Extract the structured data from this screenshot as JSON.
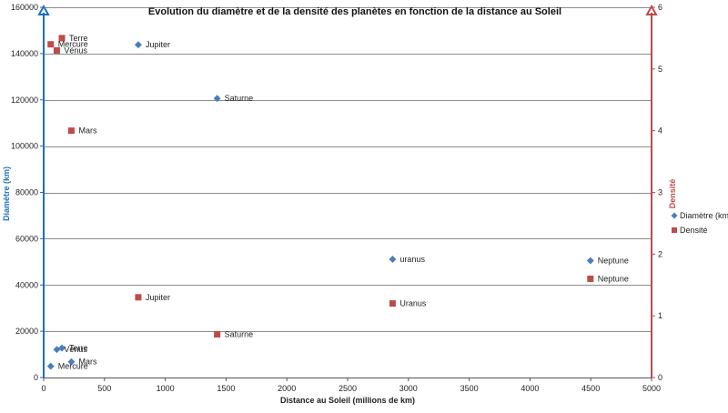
{
  "chart_data": {
    "type": "scatter",
    "title": "Evolution du diamètre et de la densité des planètes en fonction de la distance au Soleil",
    "xlabel": "Distance au Soleil (millions de km)",
    "ylabel": "Diamètre (km)",
    "y2label": "Densité",
    "xlim": [
      0,
      5000
    ],
    "ylim": [
      0,
      160000
    ],
    "y2lim": [
      0,
      6
    ],
    "x_ticks": [
      "0",
      "500",
      "1000",
      "1500",
      "2000",
      "2500",
      "3000",
      "3500",
      "4000",
      "4500",
      "5000"
    ],
    "y_ticks": [
      "0",
      "20000",
      "40000",
      "60000",
      "80000",
      "100000",
      "120000",
      "140000",
      "160000"
    ],
    "y2_ticks": [
      "0",
      "1",
      "2",
      "3",
      "4",
      "5",
      "6"
    ],
    "grid": true,
    "legend_position": "right",
    "series": [
      {
        "name": "Diamètre (km)",
        "axis": "left",
        "marker": "diamond",
        "color": "#4a7ebb",
        "points": [
          {
            "x": 58,
            "y": 4880,
            "label": "Mercure"
          },
          {
            "x": 108,
            "y": 12100,
            "label": "Vénus"
          },
          {
            "x": 150,
            "y": 12750,
            "label": "Terre"
          },
          {
            "x": 228,
            "y": 6800,
            "label": "Mars"
          },
          {
            "x": 778,
            "y": 143800,
            "label": "Jupiter"
          },
          {
            "x": 1427,
            "y": 120600,
            "label": "Saturne"
          },
          {
            "x": 2870,
            "y": 51100,
            "label": "uranus"
          },
          {
            "x": 4497,
            "y": 50500,
            "label": "Neptune"
          }
        ]
      },
      {
        "name": "Densité",
        "axis": "right",
        "marker": "square",
        "color": "#be4b48",
        "points": [
          {
            "x": 58,
            "y": 5.4,
            "label": "Mercure"
          },
          {
            "x": 108,
            "y": 5.3,
            "label": "Vénus"
          },
          {
            "x": 150,
            "y": 5.5,
            "label": "Terre"
          },
          {
            "x": 228,
            "y": 4.0,
            "label": "Mars"
          },
          {
            "x": 778,
            "y": 1.3,
            "label": "Jupiter"
          },
          {
            "x": 1427,
            "y": 0.7,
            "label": "Saturne"
          },
          {
            "x": 2870,
            "y": 1.2,
            "label": "Uranus"
          },
          {
            "x": 4497,
            "y": 1.6,
            "label": "Neptune"
          }
        ]
      }
    ]
  },
  "colors": {
    "left_axis": "#1f6fbf",
    "right_axis": "#be4b48",
    "grid": "#8c8c8c"
  }
}
